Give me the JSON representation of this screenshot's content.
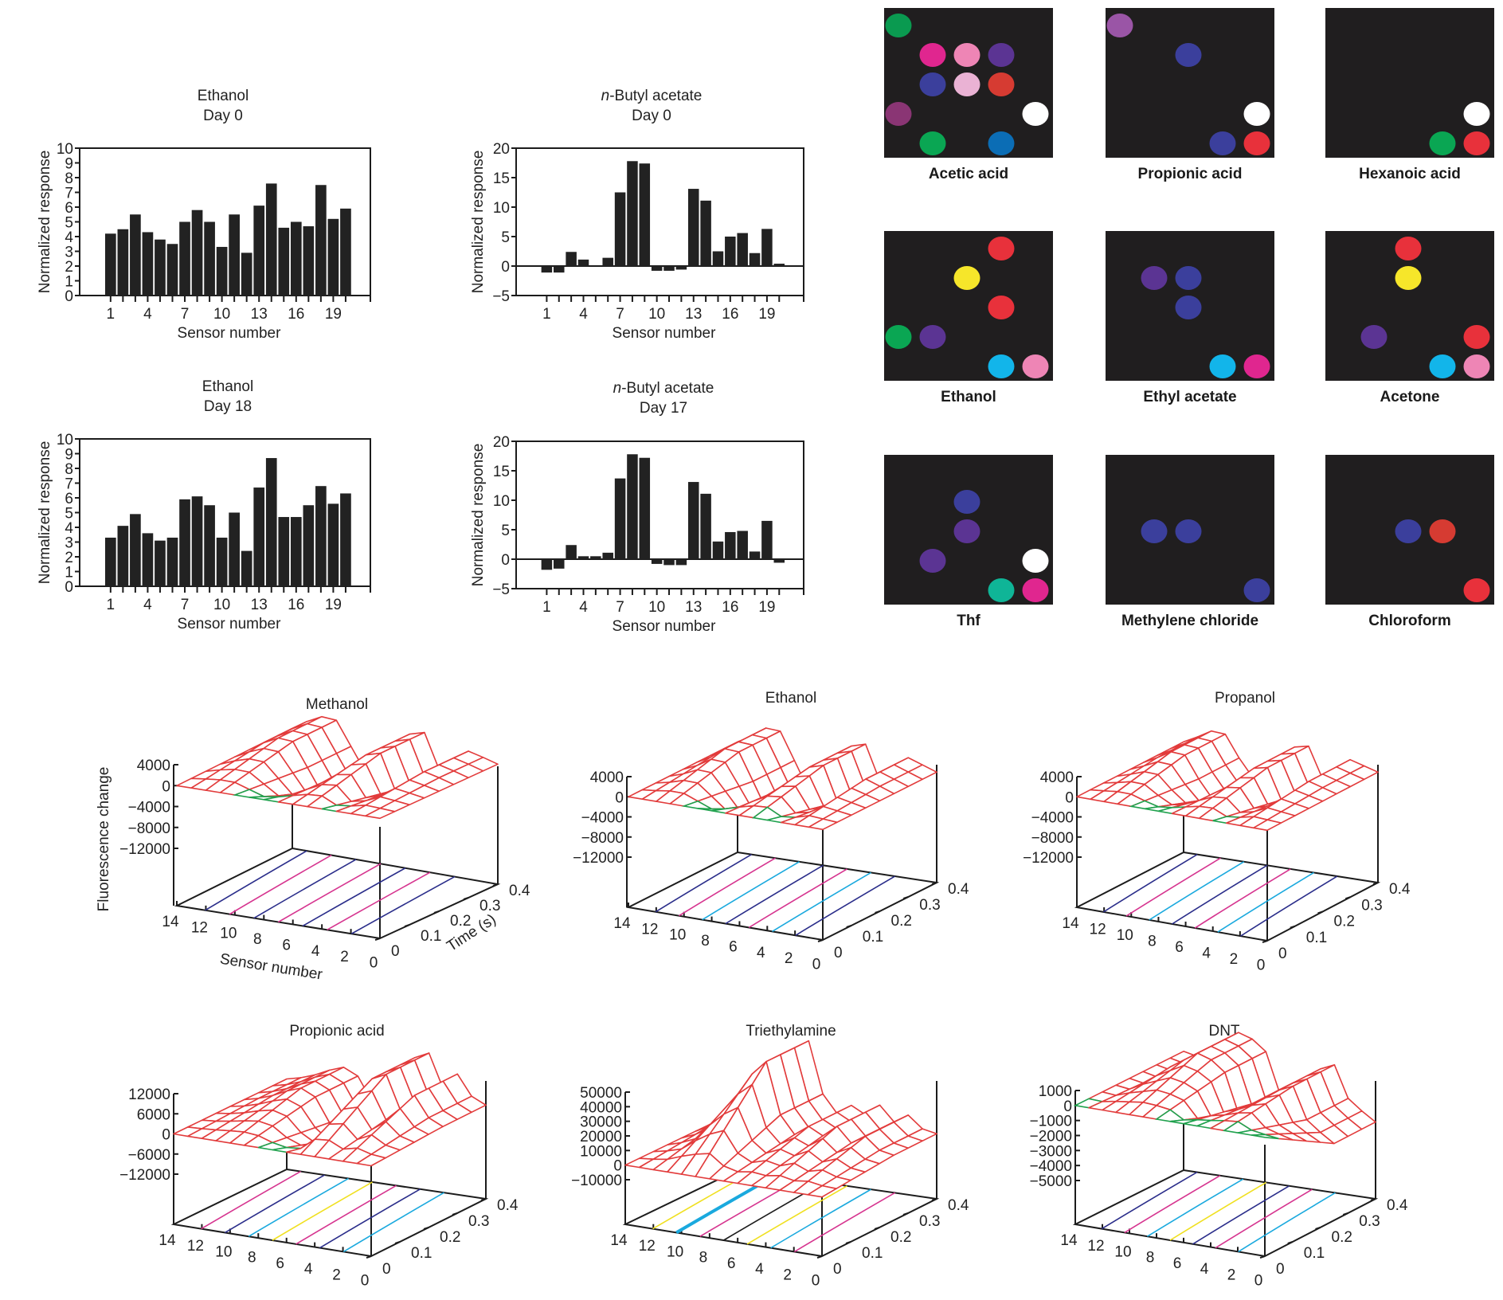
{
  "figure": {
    "colors": {
      "bar": "#222222",
      "panel_bg": "#201e1f",
      "mesh_top": "#e23b3b",
      "mesh_under": "#1fa14d",
      "contour_navy": "#2a2d8a",
      "contour_magenta": "#d6348f",
      "contour_cyan": "#1aa9de",
      "contour_yellow": "#f0e020",
      "contour_black": "#1c1c1c"
    }
  },
  "chart_data": [
    {
      "id": "bar-ethanol-day0",
      "type": "bar",
      "title": [
        "Ethanol",
        "Day 0"
      ],
      "title_italic_prefix": "",
      "xlabel": "Sensor number",
      "ylabel": "Normalized response",
      "ylim": [
        0,
        10
      ],
      "yticks": [
        0,
        1,
        2,
        3,
        4,
        5,
        6,
        7,
        8,
        9,
        10
      ],
      "xtick_labels": [
        "1",
        "4",
        "7",
        "10",
        "13",
        "16",
        "19"
      ],
      "categories": [
        1,
        2,
        3,
        4,
        5,
        6,
        7,
        8,
        9,
        10,
        11,
        12,
        13,
        14,
        15,
        16,
        17,
        18,
        19,
        20
      ],
      "values": [
        4.2,
        4.5,
        5.5,
        4.3,
        3.8,
        3.5,
        5.0,
        5.8,
        5.0,
        3.3,
        5.5,
        2.9,
        6.1,
        7.6,
        4.6,
        5.0,
        4.7,
        7.5,
        5.2,
        5.9
      ]
    },
    {
      "id": "bar-butyl-day0",
      "type": "bar",
      "title": [
        "n-Butyl acetate",
        "Day 0"
      ],
      "title_italic_prefix": "n",
      "xlabel": "Sensor number",
      "ylabel": "Normalized response",
      "ylim": [
        -5,
        20
      ],
      "yticks": [
        -5,
        0,
        5,
        10,
        15,
        20
      ],
      "xtick_labels": [
        "1",
        "4",
        "7",
        "10",
        "13",
        "16",
        "19"
      ],
      "categories": [
        1,
        2,
        3,
        4,
        5,
        6,
        7,
        8,
        9,
        10,
        11,
        12,
        13,
        14,
        15,
        16,
        17,
        18,
        19,
        20
      ],
      "values": [
        -1.1,
        -1.1,
        2.4,
        1.1,
        0,
        1.4,
        12.5,
        17.8,
        17.4,
        -0.8,
        -0.8,
        -0.6,
        13.1,
        11.1,
        2.5,
        5.0,
        5.6,
        2.2,
        6.3,
        0.4
      ]
    },
    {
      "id": "bar-ethanol-day18",
      "type": "bar",
      "title": [
        "Ethanol",
        "Day 18"
      ],
      "title_italic_prefix": "",
      "xlabel": "Sensor number",
      "ylabel": "Normalized response",
      "ylim": [
        0,
        10
      ],
      "yticks": [
        0,
        1,
        2,
        3,
        4,
        5,
        6,
        7,
        8,
        9,
        10
      ],
      "xtick_labels": [
        "1",
        "4",
        "7",
        "10",
        "13",
        "16",
        "19"
      ],
      "categories": [
        1,
        2,
        3,
        4,
        5,
        6,
        7,
        8,
        9,
        10,
        11,
        12,
        13,
        14,
        15,
        16,
        17,
        18,
        19,
        20
      ],
      "values": [
        3.3,
        4.1,
        4.9,
        3.6,
        3.1,
        3.3,
        5.9,
        6.1,
        5.5,
        3.3,
        5.0,
        2.4,
        6.7,
        8.7,
        4.7,
        4.7,
        5.5,
        6.8,
        5.6,
        6.3
      ]
    },
    {
      "id": "bar-butyl-day17",
      "type": "bar",
      "title": [
        "n-Butyl acetate",
        "Day 17"
      ],
      "title_italic_prefix": "n",
      "xlabel": "Sensor number",
      "ylabel": "Normalized response",
      "ylim": [
        -5,
        20
      ],
      "yticks": [
        -5,
        0,
        5,
        10,
        15,
        20
      ],
      "xtick_labels": [
        "1",
        "4",
        "7",
        "10",
        "13",
        "16",
        "19"
      ],
      "categories": [
        1,
        2,
        3,
        4,
        5,
        6,
        7,
        8,
        9,
        10,
        11,
        12,
        13,
        14,
        15,
        16,
        17,
        18,
        19,
        20
      ],
      "values": [
        -1.8,
        -1.6,
        2.4,
        0.5,
        0.5,
        1.1,
        13.7,
        17.8,
        17.2,
        -0.8,
        -1.0,
        -1.0,
        13.1,
        11.1,
        3.0,
        4.6,
        4.8,
        1.3,
        6.5,
        -0.6
      ]
    },
    {
      "id": "spot-array-patterns",
      "type": "heatmap",
      "grid": [
        5,
        5
      ],
      "description": "Colored sensor-spot response patterns per vapor (row, col, color)",
      "panels": [
        {
          "label": "Acetic acid",
          "spots": [
            [
              0,
              0,
              "#0a9a50"
            ],
            [
              1,
              1,
              "#e0268f"
            ],
            [
              1,
              2,
              "#ee85b5"
            ],
            [
              1,
              3,
              "#5b3493"
            ],
            [
              2,
              1,
              "#3b3f9c"
            ],
            [
              2,
              2,
              "#eab2d4"
            ],
            [
              2,
              3,
              "#d63b32"
            ],
            [
              3,
              0,
              "#8a3574"
            ],
            [
              3,
              4,
              "#ffffff"
            ],
            [
              4,
              1,
              "#0aa653"
            ],
            [
              4,
              3,
              "#0b6db5"
            ]
          ]
        },
        {
          "label": "Propionic acid",
          "spots": [
            [
              0,
              0,
              "#9a55a6"
            ],
            [
              1,
              2,
              "#3b3f9c"
            ],
            [
              3,
              4,
              "#ffffff"
            ],
            [
              4,
              3,
              "#3b3f9c"
            ],
            [
              4,
              4,
              "#e8313b"
            ]
          ]
        },
        {
          "label": "Hexanoic acid",
          "spots": [
            [
              3,
              4,
              "#ffffff"
            ],
            [
              4,
              3,
              "#0aa653"
            ],
            [
              4,
              4,
              "#e8313b"
            ]
          ]
        },
        {
          "label": "Ethanol",
          "spots": [
            [
              0,
              3,
              "#e8313b"
            ],
            [
              1,
              2,
              "#f6e62a"
            ],
            [
              2,
              3,
              "#e8313b"
            ],
            [
              3,
              0,
              "#0aa653"
            ],
            [
              3,
              1,
              "#5b3493"
            ],
            [
              4,
              3,
              "#12b5ea"
            ],
            [
              4,
              4,
              "#ee85b5"
            ]
          ]
        },
        {
          "label": "Ethyl acetate",
          "spots": [
            [
              1,
              1,
              "#5b3493"
            ],
            [
              1,
              2,
              "#3b3f9c"
            ],
            [
              2,
              2,
              "#3b3f9c"
            ],
            [
              4,
              3,
              "#12b5ea"
            ],
            [
              4,
              4,
              "#e0268f"
            ]
          ]
        },
        {
          "label": "Acetone",
          "spots": [
            [
              0,
              2,
              "#e8313b"
            ],
            [
              1,
              2,
              "#f6e62a"
            ],
            [
              3,
              1,
              "#5b3493"
            ],
            [
              3,
              4,
              "#e8313b"
            ],
            [
              4,
              3,
              "#12b5ea"
            ],
            [
              4,
              4,
              "#ee85b5"
            ]
          ]
        },
        {
          "label": "Thf",
          "spots": [
            [
              1,
              2,
              "#3b3f9c"
            ],
            [
              2,
              2,
              "#5b3493"
            ],
            [
              3,
              1,
              "#5b3493"
            ],
            [
              3,
              4,
              "#ffffff"
            ],
            [
              4,
              3,
              "#0fb597"
            ],
            [
              4,
              4,
              "#e0268f"
            ]
          ]
        },
        {
          "label": "Methylene chloride",
          "spots": [
            [
              2,
              1,
              "#3b3f9c"
            ],
            [
              2,
              2,
              "#3b3f9c"
            ],
            [
              4,
              4,
              "#3b3f9c"
            ]
          ]
        },
        {
          "label": "Chloroform",
          "spots": [
            [
              2,
              2,
              "#3b3f9c"
            ],
            [
              2,
              3,
              "#d63b32"
            ],
            [
              4,
              4,
              "#e8313b"
            ]
          ]
        }
      ]
    },
    {
      "id": "surface-methanol",
      "type": "surface",
      "title": "Methanol",
      "zlabel": "Fluorescence change",
      "xlabel": "Sensor number",
      "ylabel": "Time (s)",
      "zticks": [
        "4000",
        "0",
        "−4000",
        "−8000",
        "−12000"
      ],
      "zlim": [
        -12000,
        4000
      ],
      "xticks": [
        "14",
        "12",
        "10",
        "8",
        "6",
        "4",
        "2",
        "0"
      ],
      "yticks": [
        "0",
        "0.1",
        "0.2",
        "0.3",
        "0.4"
      ],
      "profile_by_sensor": [
        0,
        1800,
        3200,
        3000,
        -1500,
        -6000,
        -4000,
        -500,
        2800,
        3600,
        -3000,
        -1500,
        1500,
        800,
        0
      ],
      "contours": [
        "navy",
        "magenta"
      ]
    },
    {
      "id": "surface-ethanol",
      "type": "surface",
      "title": "Ethanol",
      "zlabel": "",
      "xlabel": "",
      "ylabel": "",
      "zticks": [
        "4000",
        "0",
        "−4000",
        "−8000",
        "−12000"
      ],
      "zlim": [
        -12000,
        4000
      ],
      "xticks": [
        "14",
        "12",
        "10",
        "8",
        "6",
        "4",
        "2",
        "0"
      ],
      "yticks": [
        "0",
        "0.1",
        "0.2",
        "0.3",
        "0.4"
      ],
      "profile_by_sensor": [
        0,
        1500,
        3600,
        3400,
        -2000,
        -7500,
        -5000,
        -1000,
        2600,
        3400,
        -3500,
        -2000,
        2000,
        1000,
        0
      ],
      "contours": [
        "navy",
        "magenta",
        "cyan"
      ]
    },
    {
      "id": "surface-propanol",
      "type": "surface",
      "title": "Propanol",
      "zlabel": "",
      "xlabel": "",
      "ylabel": "",
      "zticks": [
        "4000",
        "0",
        "−4000",
        "−8000",
        "−12000"
      ],
      "zlim": [
        -12000,
        4000
      ],
      "xticks": [
        "14",
        "12",
        "10",
        "8",
        "6",
        "4",
        "2",
        "0"
      ],
      "yticks": [
        "0",
        "0.1",
        "0.2",
        "0.3",
        "0.4"
      ],
      "profile_by_sensor": [
        0,
        1400,
        3000,
        2800,
        -1500,
        -5000,
        -3500,
        -500,
        2400,
        3000,
        -3000,
        -1500,
        1600,
        800,
        0
      ],
      "contours": [
        "navy",
        "magenta",
        "cyan"
      ]
    },
    {
      "id": "surface-propionic-acid",
      "type": "surface",
      "title": "Propionic acid",
      "zlabel": "",
      "xlabel": "",
      "ylabel": "",
      "zticks": [
        "12000",
        "6000",
        "0",
        "−6000",
        "−12000"
      ],
      "zlim": [
        -12000,
        12000
      ],
      "xticks": [
        "14",
        "12",
        "10",
        "8",
        "6",
        "4",
        "2",
        "0"
      ],
      "yticks": [
        "0",
        "0.1",
        "0.2",
        "0.3",
        "0.4"
      ],
      "profile_by_sensor": [
        0,
        1000,
        2500,
        4500,
        6000,
        4000,
        -3000,
        -7000,
        -5000,
        12000,
        14000,
        4000,
        9000,
        3000,
        1000
      ],
      "contours": [
        "magenta",
        "navy",
        "cyan",
        "yellow"
      ]
    },
    {
      "id": "surface-triethylamine",
      "type": "surface",
      "title": "Triethylamine",
      "zlabel": "",
      "xlabel": "",
      "ylabel": "",
      "zticks": [
        "50000",
        "40000",
        "30000",
        "20000",
        "10000",
        "0",
        "−10000"
      ],
      "zlim": [
        -10000,
        50000
      ],
      "xticks": [
        "14",
        "12",
        "10",
        "8",
        "6",
        "4",
        "2",
        "0"
      ],
      "yticks": [
        "0",
        "0.1",
        "0.2",
        "0.3",
        "0.4"
      ],
      "profile_by_sensor": [
        0,
        5000,
        12000,
        30000,
        45000,
        55000,
        20000,
        8000,
        15000,
        10000,
        18000,
        8000,
        14000,
        6000,
        4000
      ],
      "contours": [
        "yellow",
        "cyan",
        "magenta",
        "black"
      ]
    },
    {
      "id": "surface-dnt",
      "type": "surface",
      "title": "DNT",
      "zlabel": "",
      "xlabel": "",
      "ylabel": "",
      "zticks": [
        "1000",
        "0",
        "−1000",
        "−2000",
        "−3000",
        "−4000",
        "−5000"
      ],
      "zlim": [
        -5000,
        1000
      ],
      "xticks": [
        "14",
        "12",
        "10",
        "8",
        "6",
        "4",
        "2",
        "0"
      ],
      "yticks": [
        "0",
        "0.1",
        "0.2",
        "0.3",
        "0.4"
      ],
      "profile_by_sensor": [
        0,
        -200,
        600,
        1200,
        1800,
        1500,
        800,
        -1800,
        -1000,
        -500,
        200,
        600,
        -1500,
        -2200,
        -2800
      ],
      "contours": [
        "navy",
        "magenta",
        "cyan",
        "yellow"
      ]
    }
  ]
}
